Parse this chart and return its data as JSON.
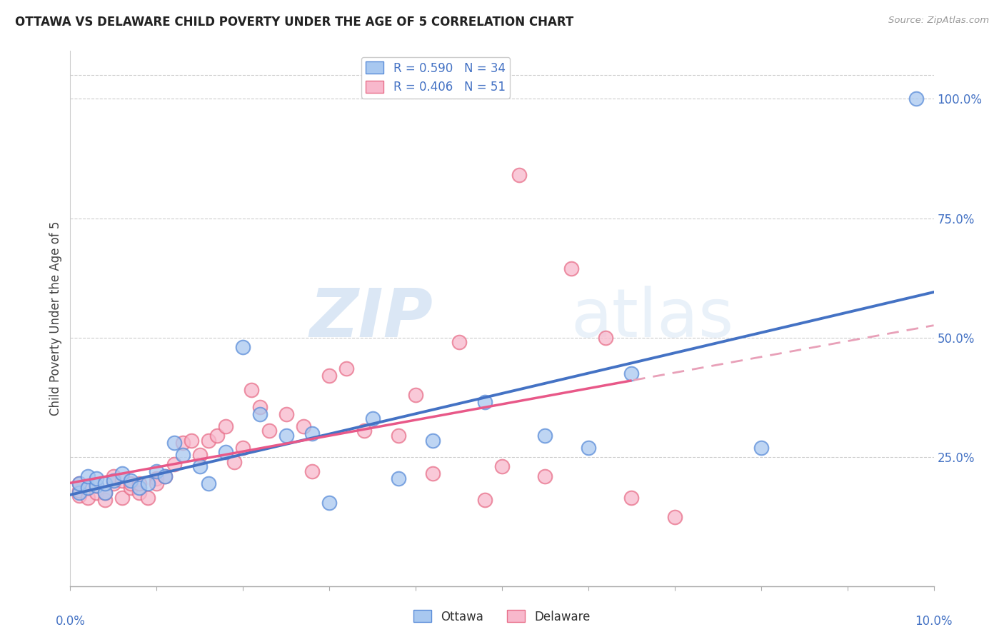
{
  "title": "OTTAWA VS DELAWARE CHILD POVERTY UNDER THE AGE OF 5 CORRELATION CHART",
  "source": "Source: ZipAtlas.com",
  "ylabel": "Child Poverty Under the Age of 5",
  "ytick_labels": [
    "100.0%",
    "75.0%",
    "50.0%",
    "25.0%"
  ],
  "ytick_values": [
    1.0,
    0.75,
    0.5,
    0.25
  ],
  "xlim": [
    0.0,
    0.1
  ],
  "ylim": [
    -0.02,
    1.1
  ],
  "ottawa_color": "#A8C8F0",
  "delaware_color": "#F8B8CC",
  "ottawa_edge_color": "#5B8DD9",
  "delaware_edge_color": "#E8708A",
  "ottawa_line_color": "#4472C4",
  "delaware_line_color": "#E85888",
  "delaware_dashed_color": "#E8A0B8",
  "watermark_color": "#C8DCF0",
  "legend_ottawa_r": "R = 0.590",
  "legend_ottawa_n": "N = 34",
  "legend_delaware_r": "R = 0.406",
  "legend_delaware_n": "N = 51",
  "ottawa_x": [
    0.001,
    0.001,
    0.002,
    0.002,
    0.003,
    0.003,
    0.004,
    0.004,
    0.005,
    0.006,
    0.007,
    0.008,
    0.009,
    0.01,
    0.011,
    0.012,
    0.013,
    0.015,
    0.016,
    0.018,
    0.02,
    0.022,
    0.025,
    0.028,
    0.03,
    0.035,
    0.038,
    0.042,
    0.048,
    0.055,
    0.06,
    0.065,
    0.08,
    0.098
  ],
  "ottawa_y": [
    0.175,
    0.195,
    0.185,
    0.21,
    0.19,
    0.205,
    0.175,
    0.195,
    0.2,
    0.215,
    0.2,
    0.185,
    0.195,
    0.22,
    0.21,
    0.28,
    0.255,
    0.23,
    0.195,
    0.26,
    0.48,
    0.34,
    0.295,
    0.3,
    0.155,
    0.33,
    0.205,
    0.285,
    0.365,
    0.295,
    0.27,
    0.425,
    0.27,
    1.0
  ],
  "delaware_x": [
    0.001,
    0.001,
    0.001,
    0.002,
    0.002,
    0.003,
    0.003,
    0.004,
    0.004,
    0.005,
    0.005,
    0.006,
    0.006,
    0.007,
    0.007,
    0.008,
    0.008,
    0.009,
    0.01,
    0.01,
    0.011,
    0.012,
    0.013,
    0.014,
    0.015,
    0.016,
    0.017,
    0.018,
    0.019,
    0.02,
    0.021,
    0.022,
    0.023,
    0.025,
    0.027,
    0.028,
    0.03,
    0.032,
    0.034,
    0.038,
    0.04,
    0.042,
    0.045,
    0.048,
    0.05,
    0.052,
    0.055,
    0.058,
    0.062,
    0.065,
    0.07
  ],
  "delaware_y": [
    0.17,
    0.18,
    0.195,
    0.165,
    0.185,
    0.175,
    0.19,
    0.16,
    0.175,
    0.195,
    0.21,
    0.165,
    0.2,
    0.185,
    0.195,
    0.175,
    0.195,
    0.165,
    0.205,
    0.195,
    0.21,
    0.235,
    0.28,
    0.285,
    0.255,
    0.285,
    0.295,
    0.315,
    0.24,
    0.27,
    0.39,
    0.355,
    0.305,
    0.34,
    0.315,
    0.22,
    0.42,
    0.435,
    0.305,
    0.295,
    0.38,
    0.215,
    0.49,
    0.16,
    0.23,
    0.84,
    0.21,
    0.645,
    0.5,
    0.165,
    0.125
  ],
  "background_color": "#FFFFFF",
  "grid_color": "#CCCCCC",
  "top_line_y": 1.05
}
